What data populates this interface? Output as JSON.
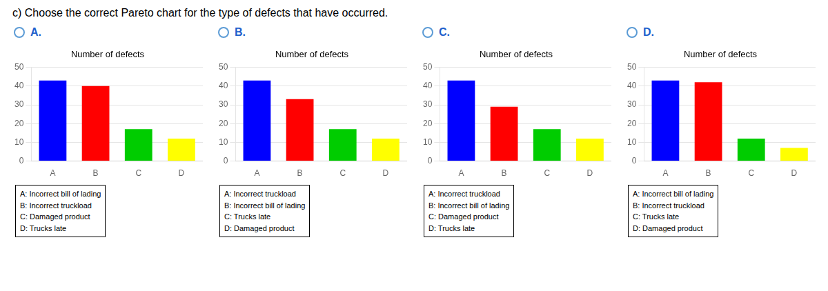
{
  "title": "c) Choose the correct Pareto chart for the type of defects that have occurred.",
  "chart_data": [
    {
      "type": "bar",
      "title": "Number of defects",
      "subtitle": "A.",
      "categories": [
        "A",
        "B",
        "C",
        "D"
      ],
      "values": [
        43,
        40,
        17,
        12
      ],
      "colors": [
        "#0000FF",
        "#FF0000",
        "#00CC00",
        "#FFFF00"
      ],
      "ylim": [
        0,
        50
      ],
      "yticks": [
        0,
        10,
        20,
        30,
        40,
        50
      ],
      "grid": true,
      "annotations": [
        "A: Incorrect bill of lading",
        "B: Incorrect truckload",
        "C: Damaged product",
        "D: Trucks late"
      ]
    },
    {
      "type": "bar",
      "title": "Number of defects",
      "subtitle": "B.",
      "categories": [
        "A",
        "B",
        "C",
        "D"
      ],
      "values": [
        43,
        33,
        17,
        12
      ],
      "colors": [
        "#0000FF",
        "#FF0000",
        "#00CC00",
        "#FFFF00"
      ],
      "ylim": [
        0,
        50
      ],
      "yticks": [
        0,
        10,
        20,
        30,
        40,
        50
      ],
      "grid": true,
      "annotations": [
        "A: Incorrect truckload",
        "B: Incorrect bill of lading",
        "C: Trucks late",
        "D: Damaged product"
      ]
    },
    {
      "type": "bar",
      "title": "Number of defects",
      "subtitle": "C.",
      "categories": [
        "A",
        "B",
        "C",
        "D"
      ],
      "values": [
        43,
        29,
        17,
        12
      ],
      "colors": [
        "#0000FF",
        "#FF0000",
        "#00CC00",
        "#FFFF00"
      ],
      "ylim": [
        0,
        50
      ],
      "yticks": [
        0,
        10,
        20,
        30,
        40,
        50
      ],
      "grid": true,
      "annotations": [
        "A: Incorrect truckload",
        "B: Incorrect bill of lading",
        "C: Damaged product",
        "D: Trucks late"
      ]
    },
    {
      "type": "bar",
      "title": "Number of defects",
      "subtitle": "D.",
      "categories": [
        "A",
        "B",
        "C",
        "D"
      ],
      "values": [
        43,
        42,
        12,
        7
      ],
      "colors": [
        "#0000FF",
        "#FF0000",
        "#00CC00",
        "#FFFF00"
      ],
      "ylim": [
        0,
        50
      ],
      "yticks": [
        0,
        10,
        20,
        30,
        40,
        50
      ],
      "grid": true,
      "annotations": [
        "A: Incorrect bill of lading",
        "B: Incorrect truckload",
        "C: Trucks late",
        "D: Damaged product"
      ]
    }
  ]
}
